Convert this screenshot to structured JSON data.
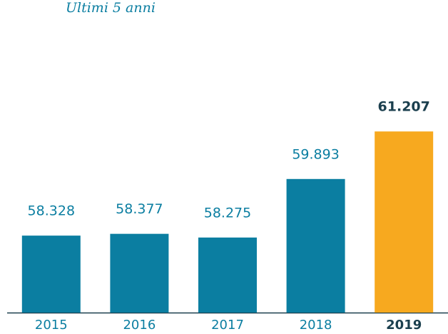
{
  "chart_data": {
    "type": "bar",
    "title": "Ultimi 5 anni",
    "categories": [
      "2015",
      "2016",
      "2017",
      "2018",
      "2019"
    ],
    "values": [
      58328,
      58377,
      58275,
      59893,
      61207
    ],
    "value_labels": [
      "58.328",
      "58.377",
      "58.275",
      "59.893",
      "61.207"
    ],
    "colors": [
      "#0b7ea1",
      "#0b7ea1",
      "#0b7ea1",
      "#0b7ea1",
      "#f7a91f"
    ],
    "ylim": [
      56200,
      62000
    ]
  }
}
